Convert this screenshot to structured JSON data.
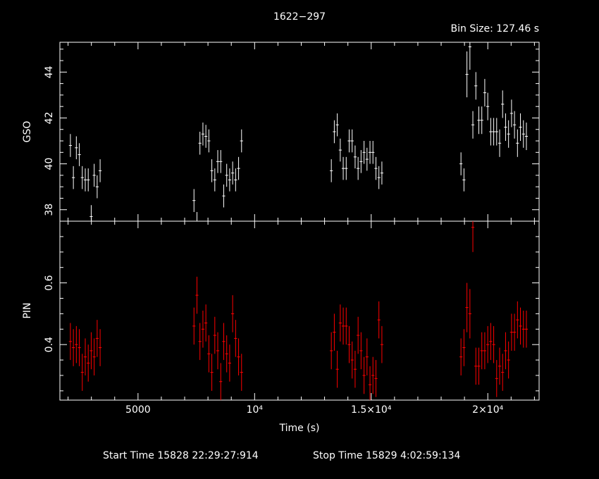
{
  "chart_data": {
    "type": "scatter",
    "title": "1622−297",
    "bin_size_label": "Bin Size:  127.46  s",
    "xlabel": "Time (s)",
    "xlim": [
      1650,
      22200
    ],
    "x_ticks": [
      {
        "value": 5000,
        "label": "5000"
      },
      {
        "value": 10000,
        "label": "10⁴"
      },
      {
        "value": 15000,
        "label": "1.5×10⁴"
      },
      {
        "value": 20000,
        "label": "2×10⁴"
      }
    ],
    "footer": {
      "start": "Start Time  15828  22:29:27:914",
      "stop": "Stop Time  15829   4:02:59:134"
    },
    "panels": [
      {
        "id": "gso",
        "ylabel": "GSO",
        "ylim": [
          37.5,
          45.3
        ],
        "color": "#ffffff",
        "y_ticks": [
          38,
          40,
          42,
          44
        ],
        "x": [
          2100,
          2228,
          2355,
          2483,
          2610,
          2738,
          2865,
          2993,
          3120,
          3248,
          3375,
          7400,
          7528,
          7655,
          7783,
          7910,
          8038,
          8165,
          8293,
          8420,
          8548,
          8675,
          8803,
          8930,
          9058,
          9185,
          9313,
          9440,
          13290,
          13418,
          13545,
          13673,
          13800,
          13928,
          14055,
          14183,
          14310,
          14438,
          14565,
          14693,
          14820,
          14948,
          15075,
          15203,
          15330,
          15458,
          18850,
          18978,
          19105,
          19233,
          19360,
          19488,
          19615,
          19743,
          19870,
          19998,
          20125,
          20253,
          20380,
          20508,
          20635,
          20763,
          20890,
          21018,
          21145,
          21273,
          21400,
          21528,
          21655
        ],
        "y": [
          40.8,
          39.4,
          40.7,
          40.4,
          39.4,
          39.3,
          39.3,
          37.7,
          39.5,
          39.0,
          39.7,
          38.4,
          37.4,
          40.9,
          41.3,
          41.2,
          41.0,
          39.7,
          39.3,
          40.1,
          40.1,
          38.6,
          39.5,
          39.3,
          39.6,
          39.3,
          39.8,
          41.0,
          39.7,
          41.4,
          41.7,
          40.6,
          39.8,
          39.8,
          41.0,
          41.0,
          40.3,
          39.8,
          40.1,
          40.5,
          40.2,
          40.5,
          40.5,
          39.8,
          39.4,
          39.6,
          40.0,
          39.3,
          43.9,
          45.1,
          41.7,
          43.4,
          41.9,
          41.9,
          43.1,
          42.5,
          41.4,
          41.4,
          41.4,
          40.9,
          42.6,
          41.6,
          41.3,
          42.2,
          41.7,
          40.9,
          41.6,
          41.3,
          41.2
        ],
        "err": [
          0.5,
          0.5,
          0.5,
          0.5,
          0.5,
          0.5,
          0.5,
          0.5,
          0.5,
          0.5,
          0.5,
          0.5,
          0.5,
          0.5,
          0.5,
          0.5,
          0.5,
          0.5,
          0.5,
          0.5,
          0.5,
          0.5,
          0.5,
          0.5,
          0.5,
          0.5,
          0.5,
          0.5,
          0.5,
          0.5,
          0.5,
          0.5,
          0.5,
          0.5,
          0.5,
          0.5,
          0.5,
          0.5,
          0.5,
          0.5,
          0.5,
          0.5,
          0.5,
          0.5,
          0.5,
          0.5,
          0.5,
          0.5,
          1.0,
          1.0,
          0.6,
          0.6,
          0.6,
          0.6,
          0.6,
          0.6,
          0.6,
          0.6,
          0.6,
          0.6,
          0.6,
          0.6,
          0.6,
          0.6,
          0.6,
          0.6,
          0.6,
          0.6,
          0.6
        ]
      },
      {
        "id": "pin",
        "ylabel": "PIN",
        "ylim": [
          0.22,
          0.8
        ],
        "color": "#ff0000",
        "y_ticks": [
          0.4,
          0.6
        ],
        "x": [
          2100,
          2228,
          2355,
          2483,
          2610,
          2738,
          2865,
          2993,
          3120,
          3248,
          3375,
          7400,
          7528,
          7655,
          7783,
          7910,
          8038,
          8165,
          8293,
          8420,
          8548,
          8675,
          8803,
          8930,
          9058,
          9185,
          9313,
          9440,
          13290,
          13418,
          13545,
          13673,
          13800,
          13928,
          14055,
          14183,
          14310,
          14438,
          14565,
          14693,
          14820,
          14948,
          15075,
          15203,
          15330,
          15458,
          18850,
          18978,
          19105,
          19233,
          19360,
          19488,
          19615,
          19743,
          19870,
          19998,
          20125,
          20253,
          20380,
          20508,
          20635,
          20763,
          20890,
          21018,
          21145,
          21273,
          21400,
          21528,
          21655
        ],
        "y": [
          0.41,
          0.39,
          0.4,
          0.39,
          0.31,
          0.36,
          0.34,
          0.38,
          0.36,
          0.42,
          0.39,
          0.46,
          0.56,
          0.41,
          0.45,
          0.47,
          0.37,
          0.31,
          0.43,
          0.38,
          0.28,
          0.41,
          0.37,
          0.34,
          0.5,
          0.42,
          0.36,
          0.31,
          0.38,
          0.44,
          0.32,
          0.47,
          0.46,
          0.46,
          0.4,
          0.35,
          0.32,
          0.43,
          0.38,
          0.3,
          0.36,
          0.27,
          0.3,
          0.29,
          0.48,
          0.4,
          0.36,
          0.39,
          0.52,
          0.5,
          0.78,
          0.33,
          0.33,
          0.38,
          0.38,
          0.4,
          0.41,
          0.4,
          0.29,
          0.33,
          0.31,
          0.38,
          0.35,
          0.44,
          0.44,
          0.48,
          0.46,
          0.45,
          0.45
        ],
        "err": [
          0.06,
          0.06,
          0.06,
          0.06,
          0.06,
          0.06,
          0.06,
          0.06,
          0.06,
          0.06,
          0.06,
          0.06,
          0.06,
          0.06,
          0.06,
          0.06,
          0.06,
          0.06,
          0.06,
          0.06,
          0.06,
          0.06,
          0.06,
          0.06,
          0.06,
          0.06,
          0.06,
          0.06,
          0.06,
          0.06,
          0.06,
          0.06,
          0.06,
          0.06,
          0.06,
          0.06,
          0.06,
          0.06,
          0.06,
          0.06,
          0.06,
          0.06,
          0.06,
          0.06,
          0.06,
          0.06,
          0.06,
          0.06,
          0.08,
          0.08,
          0.08,
          0.06,
          0.06,
          0.06,
          0.06,
          0.06,
          0.06,
          0.06,
          0.06,
          0.06,
          0.06,
          0.06,
          0.06,
          0.06,
          0.06,
          0.06,
          0.06,
          0.06,
          0.06
        ]
      }
    ]
  }
}
